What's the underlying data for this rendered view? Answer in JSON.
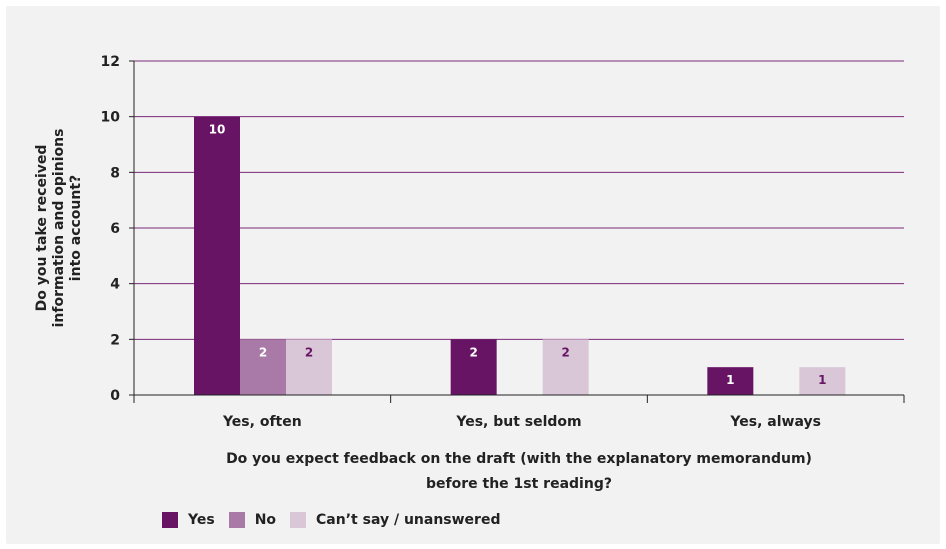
{
  "chart_data": {
    "type": "bar",
    "categories": [
      "Yes, often",
      "Yes, but seldom",
      "Yes, always"
    ],
    "series": [
      {
        "name": "Yes",
        "color": "#671465",
        "values": [
          10,
          2,
          1
        ]
      },
      {
        "name": "No",
        "color": "#a97aa7",
        "values": [
          2,
          null,
          null
        ]
      },
      {
        "name": "Can’t say / unanswered",
        "color": "#d9c7d8",
        "values": [
          2,
          2,
          1
        ]
      }
    ],
    "data_labels": [
      [
        "10",
        "2",
        "1"
      ],
      [
        "2",
        "",
        ""
      ],
      [
        "2",
        "2",
        "1"
      ]
    ],
    "data_label_colors": [
      "#ffffff",
      "#ffffff",
      "#671465"
    ],
    "ylabel_lines": [
      "Do you take received",
      "information and opinions",
      "into account?"
    ],
    "xlabel_lines": [
      "Do you expect feedback on the draft (with the explanatory memorandum)",
      "before the 1st reading?"
    ],
    "ylim": [
      0,
      12
    ],
    "yticks": [
      "0",
      "2",
      "4",
      "6",
      "8",
      "10",
      "12"
    ],
    "grid": true,
    "legend_position": "bottom-left",
    "gridline_color": "#7b2a79",
    "text_color": "#222222"
  }
}
